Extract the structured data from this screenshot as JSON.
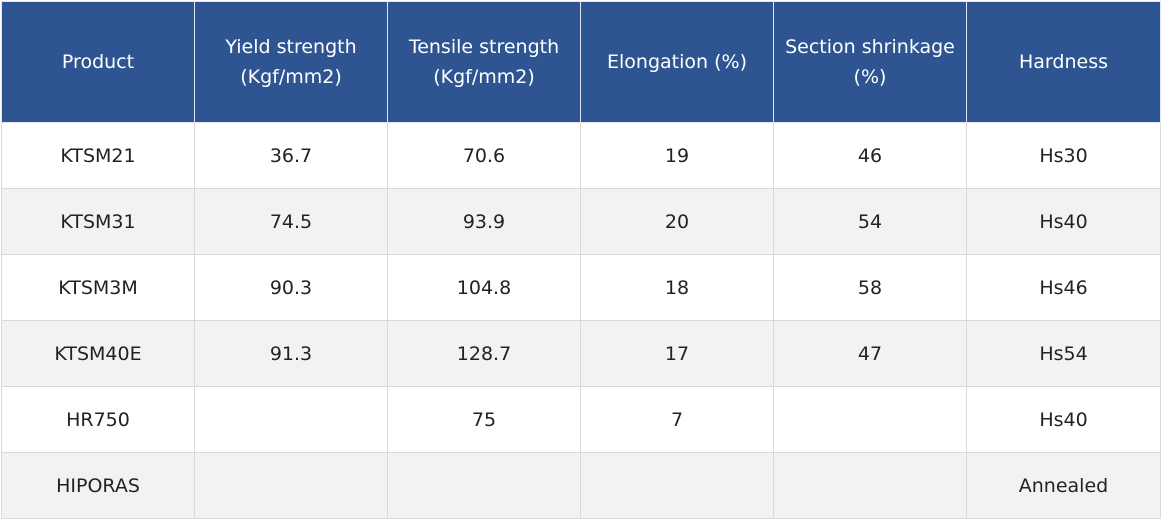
{
  "table": {
    "headers": [
      {
        "line1": "Product",
        "line2": ""
      },
      {
        "line1": "Yield strength",
        "line2": "(Kgf/mm2)"
      },
      {
        "line1": "Tensile strength",
        "line2": "(Kgf/mm2)"
      },
      {
        "line1": "Elongation (%)",
        "line2": ""
      },
      {
        "line1": "Section shrinkage",
        "line2": "(%)"
      },
      {
        "line1": "Hardness",
        "line2": ""
      }
    ],
    "rows": [
      [
        "KTSM21",
        "36.7",
        "70.6",
        "19",
        "46",
        "Hs30"
      ],
      [
        "KTSM31",
        "74.5",
        "93.9",
        "20",
        "54",
        "Hs40"
      ],
      [
        "KTSM3M",
        "90.3",
        "104.8",
        "18",
        "58",
        "Hs46"
      ],
      [
        "KTSM40E",
        "91.3",
        "128.7",
        "17",
        "47",
        "Hs54"
      ],
      [
        "HR750",
        "",
        "75",
        "7",
        "",
        "Hs40"
      ],
      [
        "HIPORAS",
        "",
        "",
        "",
        "",
        "Annealed"
      ]
    ]
  },
  "colors": {
    "header_bg": "#2e5591",
    "header_text": "#ffffff",
    "row_alt_bg": "#f2f2f2",
    "border": "#d9d9d9"
  }
}
